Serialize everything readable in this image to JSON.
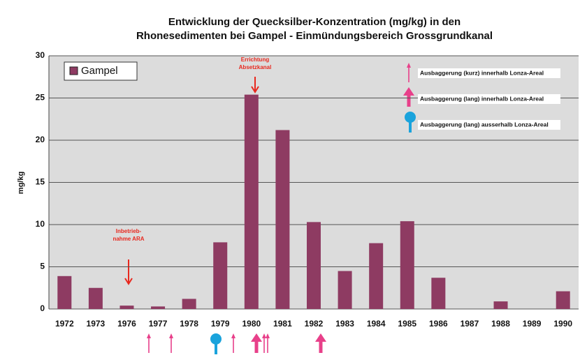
{
  "chart_data": {
    "type": "bar",
    "title": [
      "Entwicklung der Quecksilber-Konzentration (mg/kg) in den",
      "Rhonesedimenten bei Gampel - Einmündungsbereich Grossgrundkanal"
    ],
    "ylabel": "mg/kg",
    "categories": [
      "1972",
      "1973",
      "1976",
      "1977",
      "1978",
      "1979",
      "1980",
      "1981",
      "1982",
      "1983",
      "1984",
      "1985",
      "1986",
      "1987",
      "1988",
      "1989",
      "1990"
    ],
    "series": [
      {
        "name": "Gampel",
        "color": "#8e3b62",
        "values": [
          3.9,
          2.5,
          0.4,
          0.3,
          1.2,
          7.9,
          25.4,
          21.2,
          10.3,
          4.5,
          7.8,
          10.4,
          3.7,
          null,
          0.9,
          null,
          2.1
        ]
      }
    ],
    "ylim": [
      0,
      30
    ],
    "yticks": [
      0,
      5,
      10,
      15,
      20,
      25,
      30
    ],
    "grid": true,
    "legend": "upper left",
    "annotations": [
      {
        "lines": [
          "Inbetrieb-",
          "nahme ARA"
        ]
      },
      {
        "lines": [
          "Errichtung",
          "Absetzkanal"
        ]
      }
    ],
    "symbol_legend": [
      "Ausbaggerung  (kurz) innerhalb Lonza-Areal",
      "Ausbaggerung  (lang) innerhalb Lonza-Areal",
      "Ausbaggerung  (lang) ausserhalb Lonza-Areal"
    ]
  }
}
